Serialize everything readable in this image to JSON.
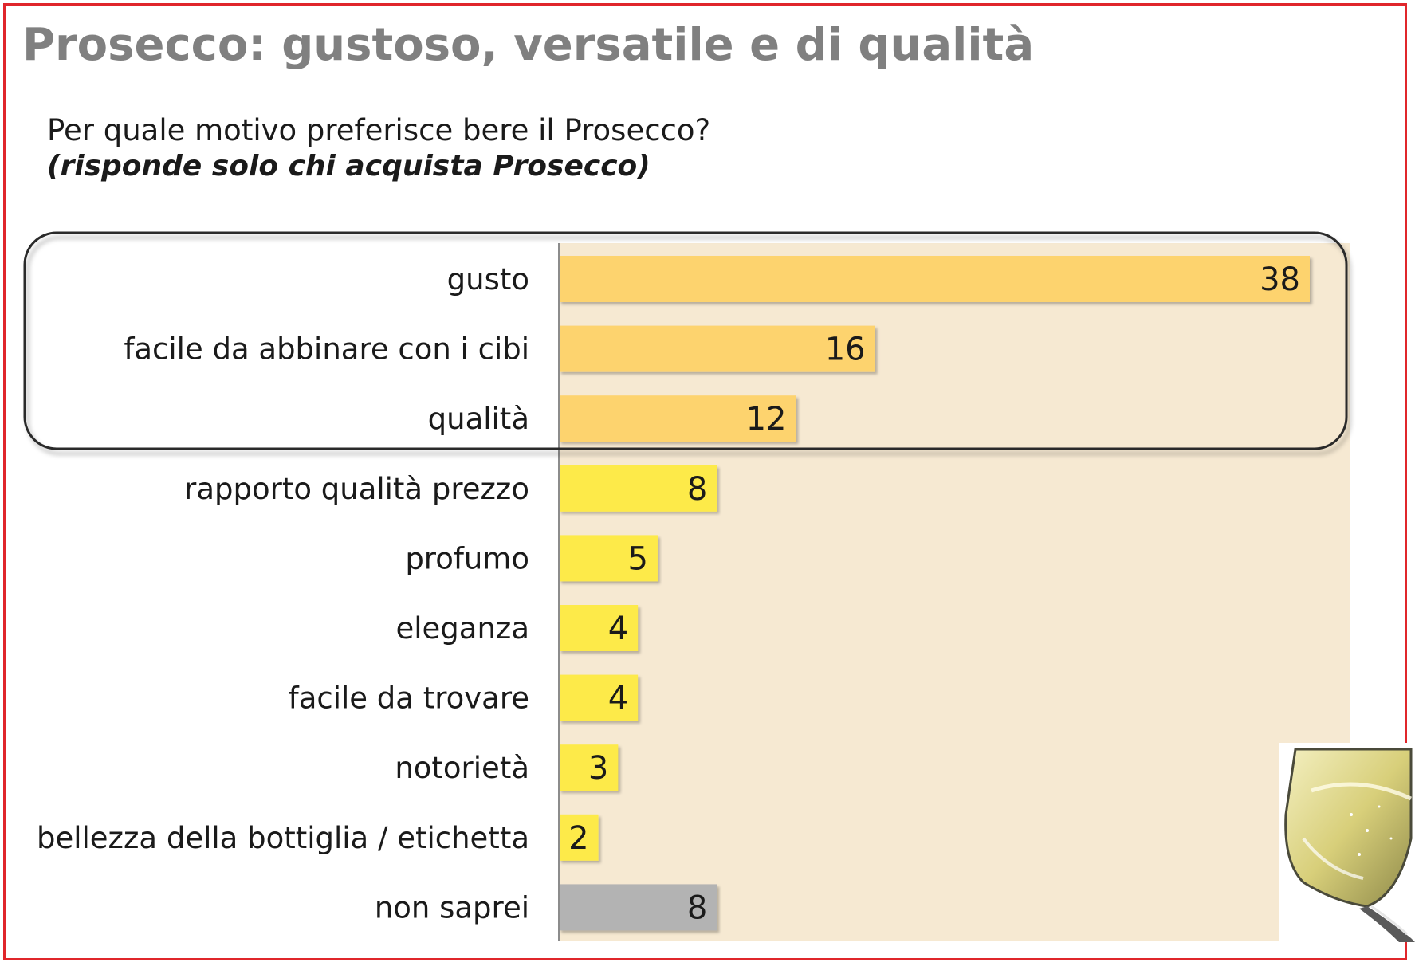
{
  "header": {
    "title": "Prosecco: gustoso, versatile e di qualità",
    "question": "Per quale motivo preferisce bere il Prosecco?",
    "note": "(risponde solo chi acquista Prosecco)"
  },
  "colors": {
    "frame": "#e0262b",
    "title": "#808080",
    "plot_background": "#f6e9d2",
    "bar_highlight": "#fdd36e",
    "bar_default": "#fdea49",
    "bar_unknown": "#b3b3b3",
    "highlight_box": "#2b2b2b"
  },
  "chart_data": {
    "type": "bar",
    "orientation": "horizontal",
    "categories": [
      "gusto",
      "facile da abbinare con i cibi",
      "qualità",
      "rapporto qualità prezzo",
      "profumo",
      "eleganza",
      "facile da trovare",
      "notorietà",
      "bellezza della bottiglia / etichetta",
      "non saprei"
    ],
    "values": [
      38,
      16,
      12,
      8,
      5,
      4,
      4,
      3,
      2,
      8
    ],
    "value_labels": [
      "38",
      "16",
      "12",
      "8",
      "5",
      "4",
      "4",
      "3",
      "2",
      "8"
    ],
    "bar_groups": [
      "highlight",
      "highlight",
      "highlight",
      "default",
      "default",
      "default",
      "default",
      "default",
      "default",
      "unknown"
    ],
    "highlighted_categories": [
      "gusto",
      "facile da abbinare con i cibi",
      "qualità"
    ],
    "xlim": [
      0,
      40
    ],
    "data_labels": "inside-end",
    "grid": false,
    "legend": "none"
  },
  "decoration": {
    "image": "prosecco-glass-icon"
  }
}
